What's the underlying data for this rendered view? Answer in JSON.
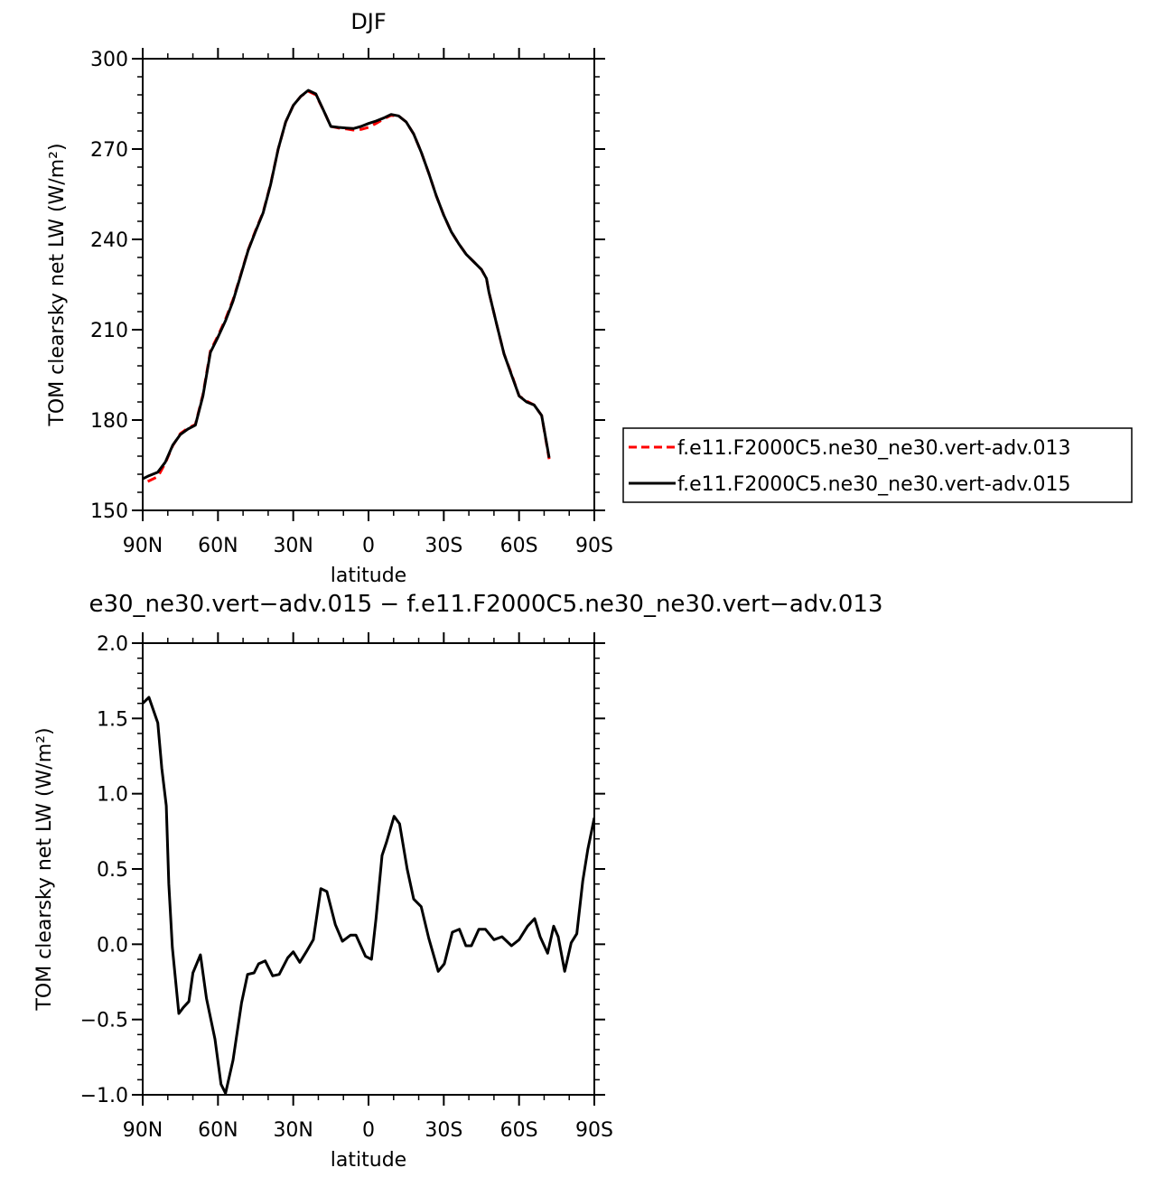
{
  "colors": {
    "series_013": "#ff0000",
    "series_015": "#000000",
    "axes": "#000000"
  },
  "chart_data": [
    {
      "type": "line",
      "title": "DJF",
      "xlabel": "latitude",
      "ylabel": "TOM clearsky net LW (W/m²)",
      "xlim": [
        -90,
        90
      ],
      "ylim": [
        150,
        300
      ],
      "xticks": [
        {
          "value": -90,
          "label": "90N"
        },
        {
          "value": -60,
          "label": "60N"
        },
        {
          "value": -30,
          "label": "30N"
        },
        {
          "value": 0,
          "label": "0"
        },
        {
          "value": 30,
          "label": "30S"
        },
        {
          "value": 60,
          "label": "60S"
        },
        {
          "value": 90,
          "label": "90S"
        }
      ],
      "yticks": [
        {
          "value": 150,
          "label": "150"
        },
        {
          "value": 180,
          "label": "180"
        },
        {
          "value": 210,
          "label": "210"
        },
        {
          "value": 240,
          "label": "240"
        },
        {
          "value": 270,
          "label": "270"
        },
        {
          "value": 300,
          "label": "300"
        }
      ],
      "legend_position": "right",
      "series": [
        {
          "name": "f.e11.F2000C5.ne30_ne30.vert-adv.013",
          "color": "#ff0000",
          "style": "dashed",
          "points": [
            [
              -88,
              159.6
            ],
            [
              -84,
              161.2
            ],
            [
              -81,
              165.7
            ],
            [
              -78,
              171.5
            ],
            [
              -75,
              175.5
            ],
            [
              -72,
              177.3
            ],
            [
              -69,
              178.5
            ],
            [
              -66,
              188.5
            ],
            [
              -63,
              203
            ],
            [
              -60,
              208
            ],
            [
              -57,
              213.5
            ],
            [
              -54,
              220
            ],
            [
              -51,
              228
            ],
            [
              -48,
              236.5
            ],
            [
              -45,
              243
            ],
            [
              -42,
              249
            ],
            [
              -39,
              258.5
            ],
            [
              -36,
              270
            ],
            [
              -33,
              279
            ],
            [
              -30,
              284.5
            ],
            [
              -27,
              287.5
            ],
            [
              -24,
              289.2
            ],
            [
              -21,
              288
            ],
            [
              -18,
              283
            ],
            [
              -15,
              277.5
            ],
            [
              -12,
              277
            ],
            [
              -9,
              276.7
            ],
            [
              -6,
              276.3
            ],
            [
              -3,
              276.5
            ],
            [
              0,
              277.2
            ],
            [
              3,
              278.5
            ],
            [
              6,
              280
            ],
            [
              9,
              281.2
            ],
            [
              12,
              281
            ],
            [
              15,
              279
            ],
            [
              18,
              275
            ],
            [
              21,
              269
            ],
            [
              24,
              262
            ],
            [
              27,
              254.5
            ],
            [
              30,
              248
            ],
            [
              33,
              242.5
            ],
            [
              36,
              238.5
            ],
            [
              39,
              235
            ],
            [
              42,
              232.5
            ],
            [
              45,
              230
            ],
            [
              47,
              227
            ],
            [
              48,
              222.5
            ],
            [
              51,
              212
            ],
            [
              54,
              202
            ],
            [
              57,
              195.3
            ],
            [
              60,
              188
            ],
            [
              63,
              186.3
            ],
            [
              66,
              185
            ],
            [
              69,
              181.5
            ],
            [
              72,
              167
            ]
          ]
        },
        {
          "name": "f.e11.F2000C5.ne30_ne30.vert-adv.015",
          "color": "#000000",
          "style": "solid",
          "points": [
            [
              -90,
              160.5
            ],
            [
              -88,
              161.3
            ],
            [
              -84,
              162.7
            ],
            [
              -81,
              166
            ],
            [
              -78,
              171.7
            ],
            [
              -75,
              175.2
            ],
            [
              -72,
              177
            ],
            [
              -69,
              178.3
            ],
            [
              -66,
              188
            ],
            [
              -63,
              202.5
            ],
            [
              -60,
              207.5
            ],
            [
              -57,
              213
            ],
            [
              -54,
              219.5
            ],
            [
              -51,
              227.8
            ],
            [
              -48,
              236.3
            ],
            [
              -45,
              242.7
            ],
            [
              -42,
              248.8
            ],
            [
              -39,
              258.3
            ],
            [
              -36,
              270
            ],
            [
              -33,
              279
            ],
            [
              -30,
              284.5
            ],
            [
              -27,
              287.5
            ],
            [
              -24,
              289.5
            ],
            [
              -21,
              288.3
            ],
            [
              -18,
              283
            ],
            [
              -15,
              277.5
            ],
            [
              -12,
              277.2
            ],
            [
              -9,
              277
            ],
            [
              -6,
              276.8
            ],
            [
              -3,
              277.5
            ],
            [
              0,
              278.5
            ],
            [
              3,
              279.3
            ],
            [
              6,
              280.3
            ],
            [
              9,
              281.5
            ],
            [
              12,
              281
            ],
            [
              15,
              279
            ],
            [
              18,
              275
            ],
            [
              21,
              269
            ],
            [
              24,
              262
            ],
            [
              27,
              254.5
            ],
            [
              30,
              248
            ],
            [
              33,
              242.5
            ],
            [
              36,
              238.5
            ],
            [
              39,
              235
            ],
            [
              42,
              232.5
            ],
            [
              45,
              230
            ],
            [
              47,
              227
            ],
            [
              48,
              222.5
            ],
            [
              51,
              212
            ],
            [
              54,
              202
            ],
            [
              57,
              195
            ],
            [
              60,
              188
            ],
            [
              63,
              186
            ],
            [
              66,
              185
            ],
            [
              69,
              181.5
            ],
            [
              72,
              167.5
            ]
          ]
        }
      ]
    },
    {
      "type": "line",
      "title": "e30_ne30.vert−adv.015 − f.e11.F2000C5.ne30_ne30.vert−adv.013",
      "xlabel": "latitude",
      "ylabel": "TOM clearsky net LW (W/m²)",
      "xlim": [
        -90,
        90
      ],
      "ylim": [
        -1.0,
        2.0
      ],
      "xticks": [
        {
          "value": -90,
          "label": "90N"
        },
        {
          "value": -60,
          "label": "60N"
        },
        {
          "value": -30,
          "label": "30N"
        },
        {
          "value": 0,
          "label": "0"
        },
        {
          "value": 30,
          "label": "30S"
        },
        {
          "value": 60,
          "label": "60S"
        },
        {
          "value": 90,
          "label": "90S"
        }
      ],
      "yticks": [
        {
          "value": -1.0,
          "label": "−1.0"
        },
        {
          "value": -0.5,
          "label": "−0.5"
        },
        {
          "value": 0.0,
          "label": "0.0"
        },
        {
          "value": 0.5,
          "label": "0.5"
        },
        {
          "value": 1.0,
          "label": "1.0"
        },
        {
          "value": 1.5,
          "label": "1.5"
        },
        {
          "value": 2.0,
          "label": "2.0"
        }
      ],
      "series": [
        {
          "color": "#000000",
          "style": "solid",
          "points": [
            [
              -90,
              1.6
            ],
            [
              -87.5,
              1.64
            ],
            [
              -84,
              1.47
            ],
            [
              -82.4,
              1.17
            ],
            [
              -80.6,
              0.92
            ],
            [
              -79.6,
              0.4
            ],
            [
              -78.2,
              -0.02
            ],
            [
              -75.6,
              -0.46
            ],
            [
              -73.8,
              -0.42
            ],
            [
              -71.6,
              -0.38
            ],
            [
              -70,
              -0.19
            ],
            [
              -67,
              -0.07
            ],
            [
              -64.6,
              -0.36
            ],
            [
              -61.2,
              -0.63
            ],
            [
              -58.8,
              -0.93
            ],
            [
              -57,
              -0.99
            ],
            [
              -54,
              -0.77
            ],
            [
              -50.6,
              -0.39
            ],
            [
              -48.2,
              -0.2
            ],
            [
              -45.6,
              -0.19
            ],
            [
              -43.8,
              -0.13
            ],
            [
              -41.2,
              -0.11
            ],
            [
              -38.2,
              -0.21
            ],
            [
              -35.6,
              -0.2
            ],
            [
              -32.2,
              -0.09
            ],
            [
              -30,
              -0.05
            ],
            [
              -27.4,
              -0.12
            ],
            [
              -24.8,
              -0.05
            ],
            [
              -22,
              0.03
            ],
            [
              -19,
              0.37
            ],
            [
              -16.6,
              0.35
            ],
            [
              -13.2,
              0.13
            ],
            [
              -10.4,
              0.02
            ],
            [
              -7.2,
              0.06
            ],
            [
              -5,
              0.06
            ],
            [
              -1.2,
              -0.08
            ],
            [
              1.2,
              -0.1
            ],
            [
              3,
              0.17
            ],
            [
              5.4,
              0.59
            ],
            [
              7.2,
              0.68
            ],
            [
              10.2,
              0.85
            ],
            [
              12.4,
              0.8
            ],
            [
              15.4,
              0.5
            ],
            [
              18,
              0.3
            ],
            [
              21,
              0.25
            ],
            [
              24,
              0.04
            ],
            [
              27.8,
              -0.18
            ],
            [
              30.2,
              -0.13
            ],
            [
              33.4,
              0.08
            ],
            [
              36.2,
              0.1
            ],
            [
              38.8,
              -0.01
            ],
            [
              41,
              -0.01
            ],
            [
              44,
              0.1
            ],
            [
              46.6,
              0.1
            ],
            [
              50,
              0.03
            ],
            [
              53.2,
              0.05
            ],
            [
              57,
              -0.01
            ],
            [
              60,
              0.03
            ],
            [
              63.4,
              0.12
            ],
            [
              66.2,
              0.17
            ],
            [
              68.4,
              0.05
            ],
            [
              71.4,
              -0.06
            ],
            [
              73.8,
              0.12
            ],
            [
              75.6,
              0.05
            ],
            [
              78.2,
              -0.18
            ],
            [
              80.8,
              0.01
            ],
            [
              83,
              0.07
            ],
            [
              85.4,
              0.42
            ],
            [
              87.4,
              0.63
            ],
            [
              90,
              0.84
            ]
          ]
        }
      ]
    }
  ]
}
